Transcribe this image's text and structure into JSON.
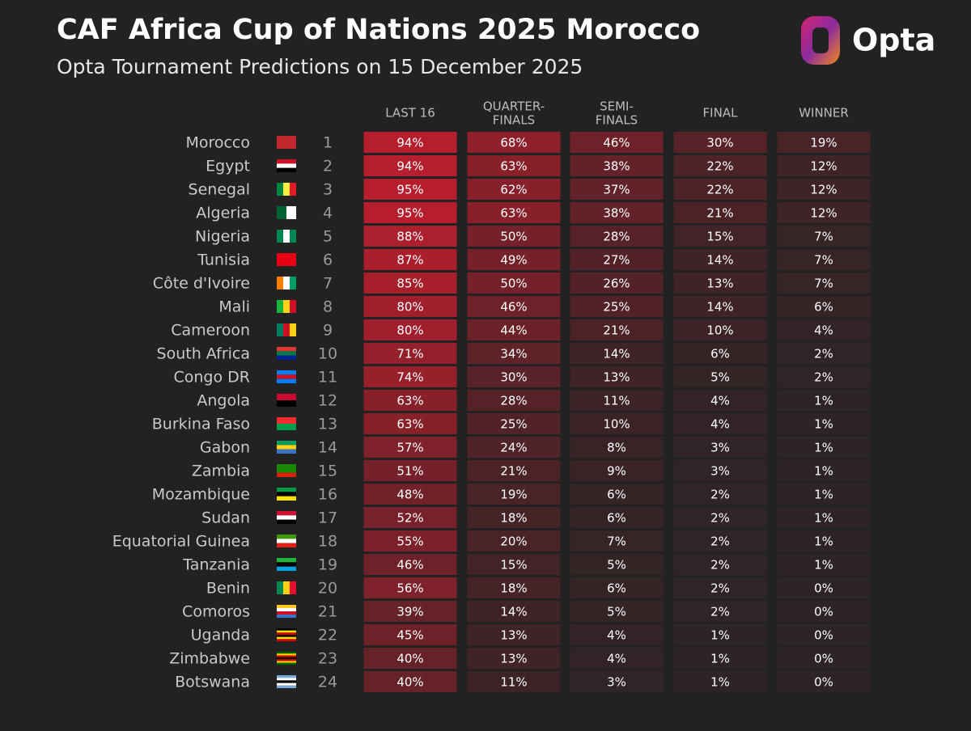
{
  "header": {
    "title": "CAF Africa Cup of Nations 2025 Morocco",
    "subtitle": "Opta Tournament Predictions on 15 December 2025",
    "logo": "Opta"
  },
  "table": {
    "columns": [
      [
        "LAST 16"
      ],
      [
        "QUARTER-",
        "FINALS"
      ],
      [
        "SEMI-",
        "FINALS"
      ],
      [
        "FINAL"
      ],
      [
        "WINNER"
      ]
    ],
    "rows": [
      {
        "team": "Morocco",
        "rank": "1",
        "cells": [
          "94%",
          "68%",
          "46%",
          "30%",
          "19%"
        ]
      },
      {
        "team": "Egypt",
        "rank": "2",
        "cells": [
          "94%",
          "63%",
          "38%",
          "22%",
          "12%"
        ]
      },
      {
        "team": "Senegal",
        "rank": "3",
        "cells": [
          "95%",
          "62%",
          "37%",
          "22%",
          "12%"
        ]
      },
      {
        "team": "Algeria",
        "rank": "4",
        "cells": [
          "95%",
          "63%",
          "38%",
          "21%",
          "12%"
        ]
      },
      {
        "team": "Nigeria",
        "rank": "5",
        "cells": [
          "88%",
          "50%",
          "28%",
          "15%",
          "7%"
        ]
      },
      {
        "team": "Tunisia",
        "rank": "6",
        "cells": [
          "87%",
          "49%",
          "27%",
          "14%",
          "7%"
        ]
      },
      {
        "team": "Côte d'Ivoire",
        "rank": "7",
        "cells": [
          "85%",
          "50%",
          "26%",
          "13%",
          "7%"
        ]
      },
      {
        "team": "Mali",
        "rank": "8",
        "cells": [
          "80%",
          "46%",
          "25%",
          "14%",
          "6%"
        ]
      },
      {
        "team": "Cameroon",
        "rank": "9",
        "cells": [
          "80%",
          "44%",
          "21%",
          "10%",
          "4%"
        ]
      },
      {
        "team": "South Africa",
        "rank": "10",
        "cells": [
          "71%",
          "34%",
          "14%",
          "6%",
          "2%"
        ]
      },
      {
        "team": "Congo DR",
        "rank": "11",
        "cells": [
          "74%",
          "30%",
          "13%",
          "5%",
          "2%"
        ]
      },
      {
        "team": "Angola",
        "rank": "12",
        "cells": [
          "63%",
          "28%",
          "11%",
          "4%",
          "1%"
        ]
      },
      {
        "team": "Burkina Faso",
        "rank": "13",
        "cells": [
          "63%",
          "25%",
          "10%",
          "4%",
          "1%"
        ]
      },
      {
        "team": "Gabon",
        "rank": "14",
        "cells": [
          "57%",
          "24%",
          "8%",
          "3%",
          "1%"
        ]
      },
      {
        "team": "Zambia",
        "rank": "15",
        "cells": [
          "51%",
          "21%",
          "9%",
          "3%",
          "1%"
        ]
      },
      {
        "team": "Mozambique",
        "rank": "16",
        "cells": [
          "48%",
          "19%",
          "6%",
          "2%",
          "1%"
        ]
      },
      {
        "team": "Sudan",
        "rank": "17",
        "cells": [
          "52%",
          "18%",
          "6%",
          "2%",
          "1%"
        ]
      },
      {
        "team": "Equatorial Guinea",
        "rank": "18",
        "cells": [
          "55%",
          "20%",
          "7%",
          "2%",
          "1%"
        ]
      },
      {
        "team": "Tanzania",
        "rank": "19",
        "cells": [
          "46%",
          "15%",
          "5%",
          "2%",
          "1%"
        ]
      },
      {
        "team": "Benin",
        "rank": "20",
        "cells": [
          "56%",
          "18%",
          "6%",
          "2%",
          "0%"
        ]
      },
      {
        "team": "Comoros",
        "rank": "21",
        "cells": [
          "39%",
          "14%",
          "5%",
          "2%",
          "0%"
        ]
      },
      {
        "team": "Uganda",
        "rank": "22",
        "cells": [
          "45%",
          "13%",
          "4%",
          "1%",
          "0%"
        ]
      },
      {
        "team": "Zimbabwe",
        "rank": "23",
        "cells": [
          "40%",
          "13%",
          "4%",
          "1%",
          "0%"
        ]
      },
      {
        "team": "Botswana",
        "rank": "24",
        "cells": [
          "40%",
          "11%",
          "3%",
          "1%",
          "0%"
        ]
      }
    ]
  }
}
